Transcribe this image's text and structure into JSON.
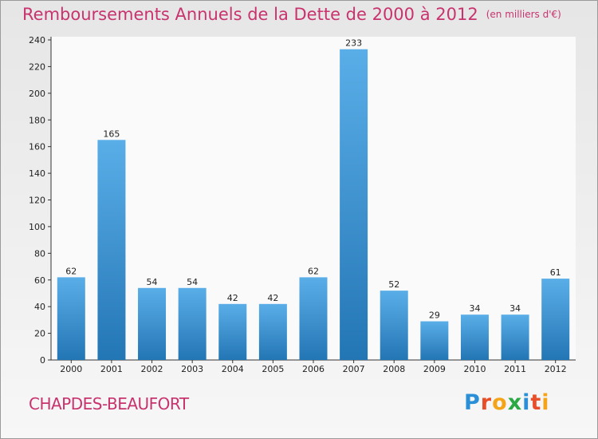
{
  "title": "Remboursements Annuels de la Dette de 2000 à 2012",
  "unit": "(en milliers d'€)",
  "commune": "CHAPDES-BEAUFORT",
  "logo": {
    "letters": [
      "P",
      "r",
      "o",
      "x",
      "i",
      "t",
      "i"
    ],
    "colors": [
      "#2a8fd6",
      "#e84e2a",
      "#f4a418",
      "#2aa844",
      "#2a8fd6",
      "#e84e2a",
      "#f4a418"
    ]
  },
  "colors": {
    "title": "#c8336e",
    "bar_top": "#5aaee8",
    "bar_bottom": "#2376b4"
  },
  "chart_data": {
    "type": "bar",
    "categories": [
      "2000",
      "2001",
      "2002",
      "2003",
      "2004",
      "2005",
      "2006",
      "2007",
      "2008",
      "2009",
      "2010",
      "2011",
      "2012"
    ],
    "values": [
      62,
      165,
      54,
      54,
      42,
      42,
      62,
      233,
      52,
      29,
      34,
      34,
      61
    ],
    "ylim": [
      0,
      240
    ],
    "yticks": [
      0,
      20,
      40,
      60,
      80,
      100,
      120,
      140,
      160,
      180,
      200,
      220,
      240
    ],
    "grid": false,
    "legend": "none"
  }
}
